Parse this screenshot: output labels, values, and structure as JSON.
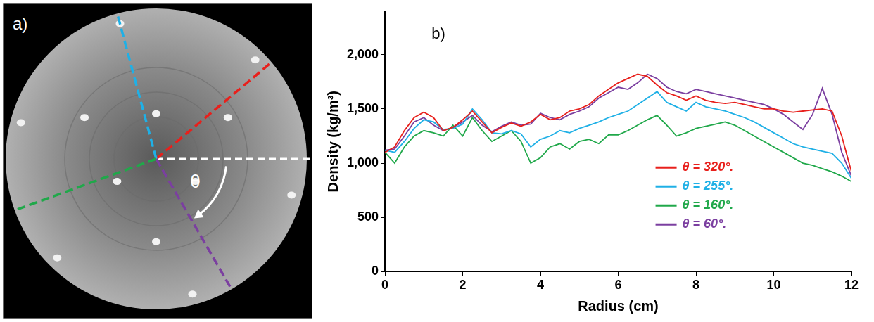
{
  "image_panel": {
    "panel_label": "a)",
    "angle_symbol": "θ"
  },
  "chart_data": {
    "type": "line",
    "panel_label": "b)",
    "x_label": "Radius (cm)",
    "y_label": "Density (kg/m³)",
    "xlim": [
      0,
      12
    ],
    "xticks": [
      0,
      2,
      4,
      6,
      8,
      10,
      12
    ],
    "ylim": [
      0,
      2400
    ],
    "yticks": [
      0,
      500,
      1000,
      1500,
      2000
    ],
    "grid": false,
    "legend": "lower right",
    "x": [
      0,
      0.25,
      0.5,
      0.75,
      1,
      1.25,
      1.5,
      1.75,
      2,
      2.25,
      2.5,
      2.75,
      3,
      3.25,
      3.5,
      3.75,
      4,
      4.25,
      4.5,
      4.75,
      5,
      5.25,
      5.5,
      5.75,
      6,
      6.25,
      6.5,
      6.75,
      7,
      7.25,
      7.5,
      7.75,
      8,
      8.25,
      8.5,
      8.75,
      9,
      9.25,
      9.5,
      9.75,
      10,
      10.25,
      10.5,
      10.75,
      11,
      11.25,
      11.5,
      11.75,
      12
    ],
    "series": [
      {
        "name": "θ = 320°.",
        "theta": 320,
        "color": "#e8201c",
        "values": [
          1100,
          1150,
          1300,
          1420,
          1470,
          1420,
          1300,
          1330,
          1400,
          1480,
          1380,
          1280,
          1330,
          1370,
          1340,
          1380,
          1450,
          1400,
          1420,
          1480,
          1500,
          1540,
          1620,
          1680,
          1740,
          1780,
          1820,
          1800,
          1720,
          1650,
          1620,
          1580,
          1620,
          1580,
          1560,
          1550,
          1560,
          1540,
          1520,
          1500,
          1500,
          1480,
          1470,
          1480,
          1490,
          1500,
          1480,
          1250,
          920
        ]
      },
      {
        "name": "θ = 255°.",
        "theta": 255,
        "color": "#1fb0e6",
        "values": [
          1120,
          1100,
          1200,
          1320,
          1400,
          1380,
          1310,
          1320,
          1360,
          1500,
          1400,
          1280,
          1270,
          1300,
          1270,
          1150,
          1220,
          1250,
          1300,
          1280,
          1320,
          1350,
          1380,
          1420,
          1450,
          1480,
          1540,
          1600,
          1660,
          1560,
          1520,
          1480,
          1560,
          1520,
          1500,
          1480,
          1450,
          1420,
          1380,
          1330,
          1280,
          1230,
          1180,
          1150,
          1130,
          1110,
          1090,
          1000,
          860
        ]
      },
      {
        "name": "θ = 160°.",
        "theta": 160,
        "color": "#20a84a",
        "values": [
          1100,
          1000,
          1150,
          1250,
          1300,
          1280,
          1250,
          1350,
          1250,
          1420,
          1300,
          1200,
          1250,
          1300,
          1200,
          1000,
          1050,
          1150,
          1180,
          1130,
          1200,
          1220,
          1180,
          1260,
          1260,
          1300,
          1350,
          1400,
          1440,
          1350,
          1250,
          1280,
          1320,
          1340,
          1360,
          1380,
          1350,
          1300,
          1250,
          1200,
          1150,
          1100,
          1050,
          1000,
          980,
          950,
          920,
          880,
          830
        ]
      },
      {
        "name": "θ = 60°.",
        "theta": 60,
        "color": "#7b3fa0",
        "values": [
          1120,
          1130,
          1250,
          1380,
          1420,
          1350,
          1300,
          1330,
          1380,
          1440,
          1350,
          1290,
          1340,
          1380,
          1350,
          1360,
          1460,
          1420,
          1400,
          1450,
          1480,
          1520,
          1600,
          1650,
          1700,
          1680,
          1740,
          1820,
          1780,
          1700,
          1660,
          1640,
          1680,
          1660,
          1640,
          1620,
          1600,
          1580,
          1560,
          1540,
          1500,
          1450,
          1380,
          1310,
          1450,
          1690,
          1450,
          1100,
          880
        ]
      }
    ]
  }
}
